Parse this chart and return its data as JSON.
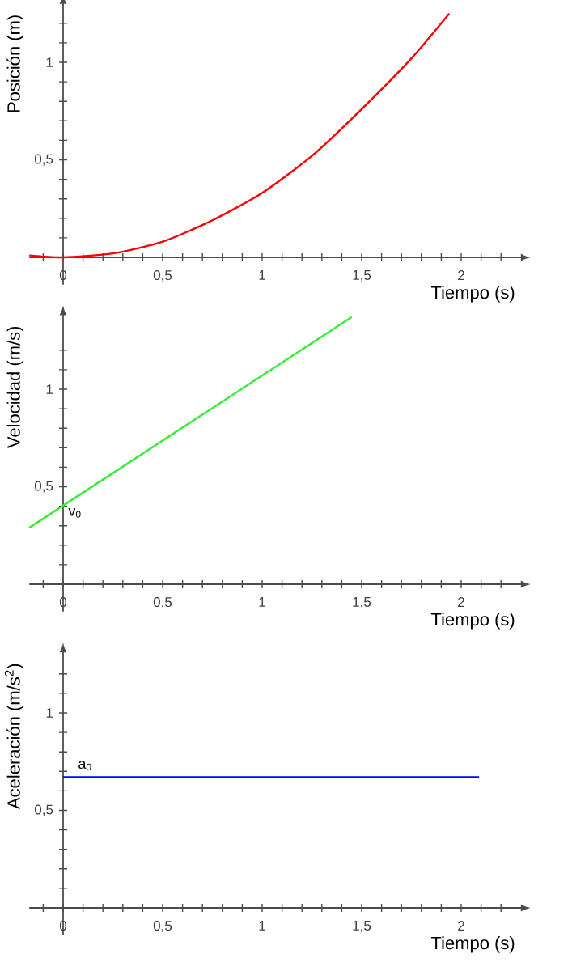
{
  "chart_data": [
    {
      "type": "line",
      "ylabel": "Posición (m)",
      "xlabel": "Tiempo (s)",
      "color": "#ff0000",
      "x": [
        -0.17,
        0,
        0.25,
        0.5,
        0.75,
        1,
        1.25,
        1.5,
        1.75,
        1.94
      ],
      "values": [
        0.01,
        0,
        0.02,
        0.08,
        0.19,
        0.33,
        0.52,
        0.76,
        1.02,
        1.25
      ],
      "xlim": [
        -0.17,
        2.3
      ],
      "ylim": [
        -0.14,
        1.3
      ],
      "xticks": [
        {
          "value": -0.1,
          "label": null
        },
        0,
        {
          "value": 0.1,
          "label": null
        },
        {
          "value": 0.2,
          "label": null
        },
        {
          "value": 0.3,
          "label": null
        },
        {
          "value": 0.4,
          "label": null
        },
        {
          "value": 0.5,
          "label": "0,5"
        },
        {
          "value": 0.6,
          "label": null
        },
        {
          "value": 0.7,
          "label": null
        },
        {
          "value": 0.8,
          "label": null
        },
        {
          "value": 0.9,
          "label": null
        },
        1,
        {
          "value": 1.1,
          "label": null
        },
        {
          "value": 1.2,
          "label": null
        },
        {
          "value": 1.3,
          "label": null
        },
        {
          "value": 1.4,
          "label": null
        },
        {
          "value": 1.5,
          "label": "1,5"
        },
        {
          "value": 1.6,
          "label": null
        },
        {
          "value": 1.7,
          "label": null
        },
        {
          "value": 1.8,
          "label": null
        },
        {
          "value": 1.9,
          "label": null
        },
        2,
        {
          "value": 2.1,
          "label": null
        },
        {
          "value": 2.2,
          "label": null
        }
      ],
      "yticks": [
        {
          "value": 0.1,
          "label": null
        },
        {
          "value": 0.2,
          "label": null
        },
        {
          "value": 0.3,
          "label": null
        },
        {
          "value": 0.4,
          "label": null
        },
        {
          "value": 0.5,
          "label": "0,5"
        },
        {
          "value": 0.6,
          "label": null
        },
        {
          "value": 0.7,
          "label": null
        },
        {
          "value": 0.8,
          "label": null
        },
        {
          "value": 0.9,
          "label": null
        },
        1,
        {
          "value": 1.1,
          "label": null
        },
        {
          "value": 1.2,
          "label": null
        }
      ]
    },
    {
      "type": "line",
      "ylabel": "Velocidad (m/s)",
      "xlabel": "Tiempo (s)",
      "color": "#33ee33",
      "x": [
        -0.17,
        1.45
      ],
      "values": [
        0.29,
        1.37
      ],
      "xlim": [
        -0.17,
        2.3
      ],
      "ylim": [
        -0.14,
        1.38
      ],
      "annotations": [
        {
          "text": "v$_{0}$",
          "x": 0,
          "y": 0.4
        }
      ],
      "xticks": [
        {
          "value": -0.1,
          "label": null
        },
        0,
        {
          "value": 0.1,
          "label": null
        },
        {
          "value": 0.2,
          "label": null
        },
        {
          "value": 0.3,
          "label": null
        },
        {
          "value": 0.4,
          "label": null
        },
        {
          "value": 0.5,
          "label": "0,5"
        },
        {
          "value": 0.6,
          "label": null
        },
        {
          "value": 0.7,
          "label": null
        },
        {
          "value": 0.8,
          "label": null
        },
        {
          "value": 0.9,
          "label": null
        },
        1,
        {
          "value": 1.1,
          "label": null
        },
        {
          "value": 1.2,
          "label": null
        },
        {
          "value": 1.3,
          "label": null
        },
        {
          "value": 1.4,
          "label": null
        },
        {
          "value": 1.5,
          "label": "1,5"
        },
        {
          "value": 1.6,
          "label": null
        },
        {
          "value": 1.7,
          "label": null
        },
        {
          "value": 1.8,
          "label": null
        },
        {
          "value": 1.9,
          "label": null
        },
        2,
        {
          "value": 2.1,
          "label": null
        },
        {
          "value": 2.2,
          "label": null
        }
      ],
      "yticks": [
        {
          "value": 0.1,
          "label": null
        },
        {
          "value": 0.2,
          "label": null
        },
        {
          "value": 0.3,
          "label": null
        },
        {
          "value": 0.4,
          "label": null
        },
        {
          "value": 0.5,
          "label": "0,5"
        },
        {
          "value": 0.6,
          "label": null
        },
        {
          "value": 0.7,
          "label": null
        },
        {
          "value": 0.8,
          "label": null
        },
        {
          "value": 0.9,
          "label": null
        },
        1,
        {
          "value": 1.1,
          "label": null
        },
        {
          "value": 1.2,
          "label": null
        }
      ]
    },
    {
      "type": "line",
      "ylabel": "Aceleración (m/s$^{2}$)",
      "xlabel": "Tiempo (s)",
      "color": "#0000ff",
      "x": [
        0,
        2.09
      ],
      "values": [
        0.67,
        0.67
      ],
      "xlim": [
        -0.17,
        2.3
      ],
      "ylim": [
        -0.14,
        1.31
      ],
      "annotations": [
        {
          "text": "a$_{0}$",
          "x": 0,
          "y": 0.67
        }
      ],
      "xticks": [
        {
          "value": -0.1,
          "label": null
        },
        0,
        {
          "value": 0.1,
          "label": null
        },
        {
          "value": 0.2,
          "label": null
        },
        {
          "value": 0.3,
          "label": null
        },
        {
          "value": 0.4,
          "label": null
        },
        {
          "value": 0.5,
          "label": "0,5"
        },
        {
          "value": 0.6,
          "label": null
        },
        {
          "value": 0.7,
          "label": null
        },
        {
          "value": 0.8,
          "label": null
        },
        {
          "value": 0.9,
          "label": null
        },
        1,
        {
          "value": 1.1,
          "label": null
        },
        {
          "value": 1.2,
          "label": null
        },
        {
          "value": 1.3,
          "label": null
        },
        {
          "value": 1.4,
          "label": null
        },
        {
          "value": 1.5,
          "label": "1,5"
        },
        {
          "value": 1.6,
          "label": null
        },
        {
          "value": 1.7,
          "label": null
        },
        {
          "value": 1.8,
          "label": null
        },
        {
          "value": 1.9,
          "label": null
        },
        2,
        {
          "value": 2.1,
          "label": null
        },
        {
          "value": 2.2,
          "label": null
        }
      ],
      "yticks": [
        {
          "value": 0.1,
          "label": null
        },
        {
          "value": 0.2,
          "label": null
        },
        {
          "value": 0.3,
          "label": null
        },
        {
          "value": 0.4,
          "label": null
        },
        {
          "value": 0.5,
          "label": "0,5"
        },
        {
          "value": 0.6,
          "label": null
        },
        {
          "value": 0.7,
          "label": null
        },
        {
          "value": 0.8,
          "label": null
        },
        {
          "value": 0.9,
          "label": null
        },
        1,
        {
          "value": 1.1,
          "label": null
        },
        {
          "value": 1.2,
          "label": null
        }
      ]
    }
  ]
}
